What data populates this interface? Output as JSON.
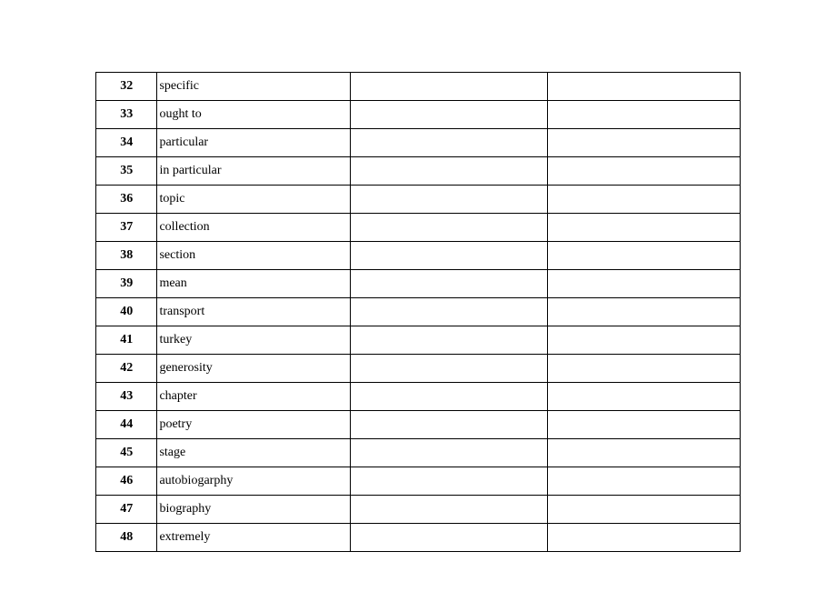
{
  "table": {
    "rows": [
      {
        "num": "32",
        "word": "specific"
      },
      {
        "num": "33",
        "word": "ought to"
      },
      {
        "num": "34",
        "word": "particular"
      },
      {
        "num": "35",
        "word": "in particular"
      },
      {
        "num": "36",
        "word": "topic"
      },
      {
        "num": "37",
        "word": "collection"
      },
      {
        "num": "38",
        "word": "section"
      },
      {
        "num": "39",
        "word": "mean"
      },
      {
        "num": "40",
        "word": "transport"
      },
      {
        "num": "41",
        "word": "turkey"
      },
      {
        "num": "42",
        "word": "generosity"
      },
      {
        "num": "43",
        "word": "chapter"
      },
      {
        "num": "44",
        "word": "poetry"
      },
      {
        "num": "45",
        "word": "stage"
      },
      {
        "num": "46",
        "word": "autobiogarphy"
      },
      {
        "num": "47",
        "word": "biography"
      },
      {
        "num": "48",
        "word": "extremely"
      }
    ]
  }
}
